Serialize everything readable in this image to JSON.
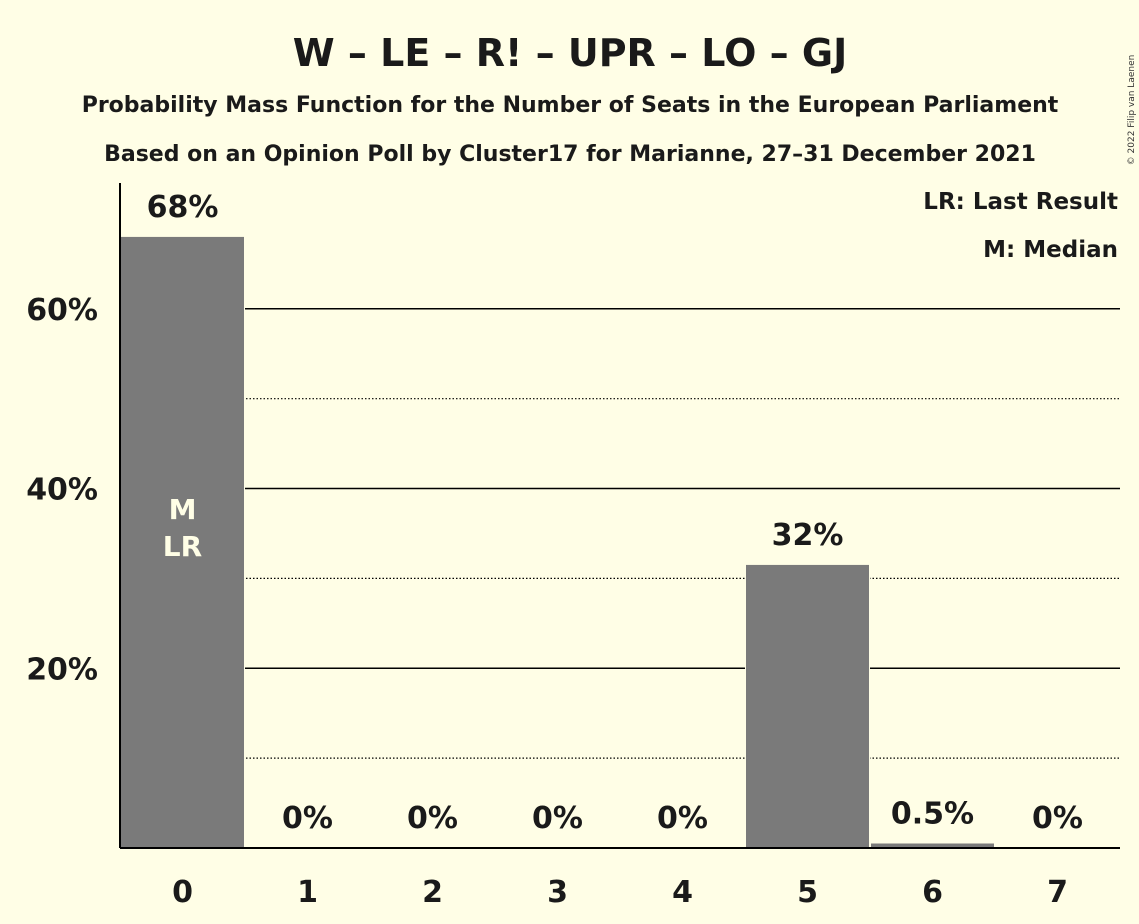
{
  "chart_data": {
    "type": "bar",
    "title": "W – LE – R! – UPR – LO – GJ",
    "subtitle1": "Probability Mass Function for the Number of Seats in the European Parliament",
    "subtitle2": "Based on an Opinion Poll by Cluster17 for Marianne, 27–31 December 2021",
    "categories": [
      "0",
      "1",
      "2",
      "3",
      "4",
      "5",
      "6",
      "7"
    ],
    "values": [
      68,
      0,
      0,
      0,
      0,
      31.5,
      0.5,
      0
    ],
    "value_labels": [
      "68%",
      "0%",
      "0%",
      "0%",
      "0%",
      "32%",
      "0.5%",
      "0%"
    ],
    "ylim": [
      0,
      74
    ],
    "yticks": [
      {
        "value": 20,
        "label": "20%"
      },
      {
        "value": 40,
        "label": "40%"
      },
      {
        "value": 60,
        "label": "60%"
      }
    ],
    "minor_gridlines": [
      10,
      30,
      50
    ],
    "bar_annotation": {
      "category": "0",
      "lines": [
        "M",
        "LR"
      ]
    },
    "legend": [
      "LR: Last Result",
      "M: Median"
    ],
    "legend_position": "top-right",
    "copyright": "© 2022 Filip van Laenen",
    "colors": {
      "bar": "#7a7a7a",
      "background": "#FFFEE6",
      "text": "#1a1a1a"
    }
  }
}
